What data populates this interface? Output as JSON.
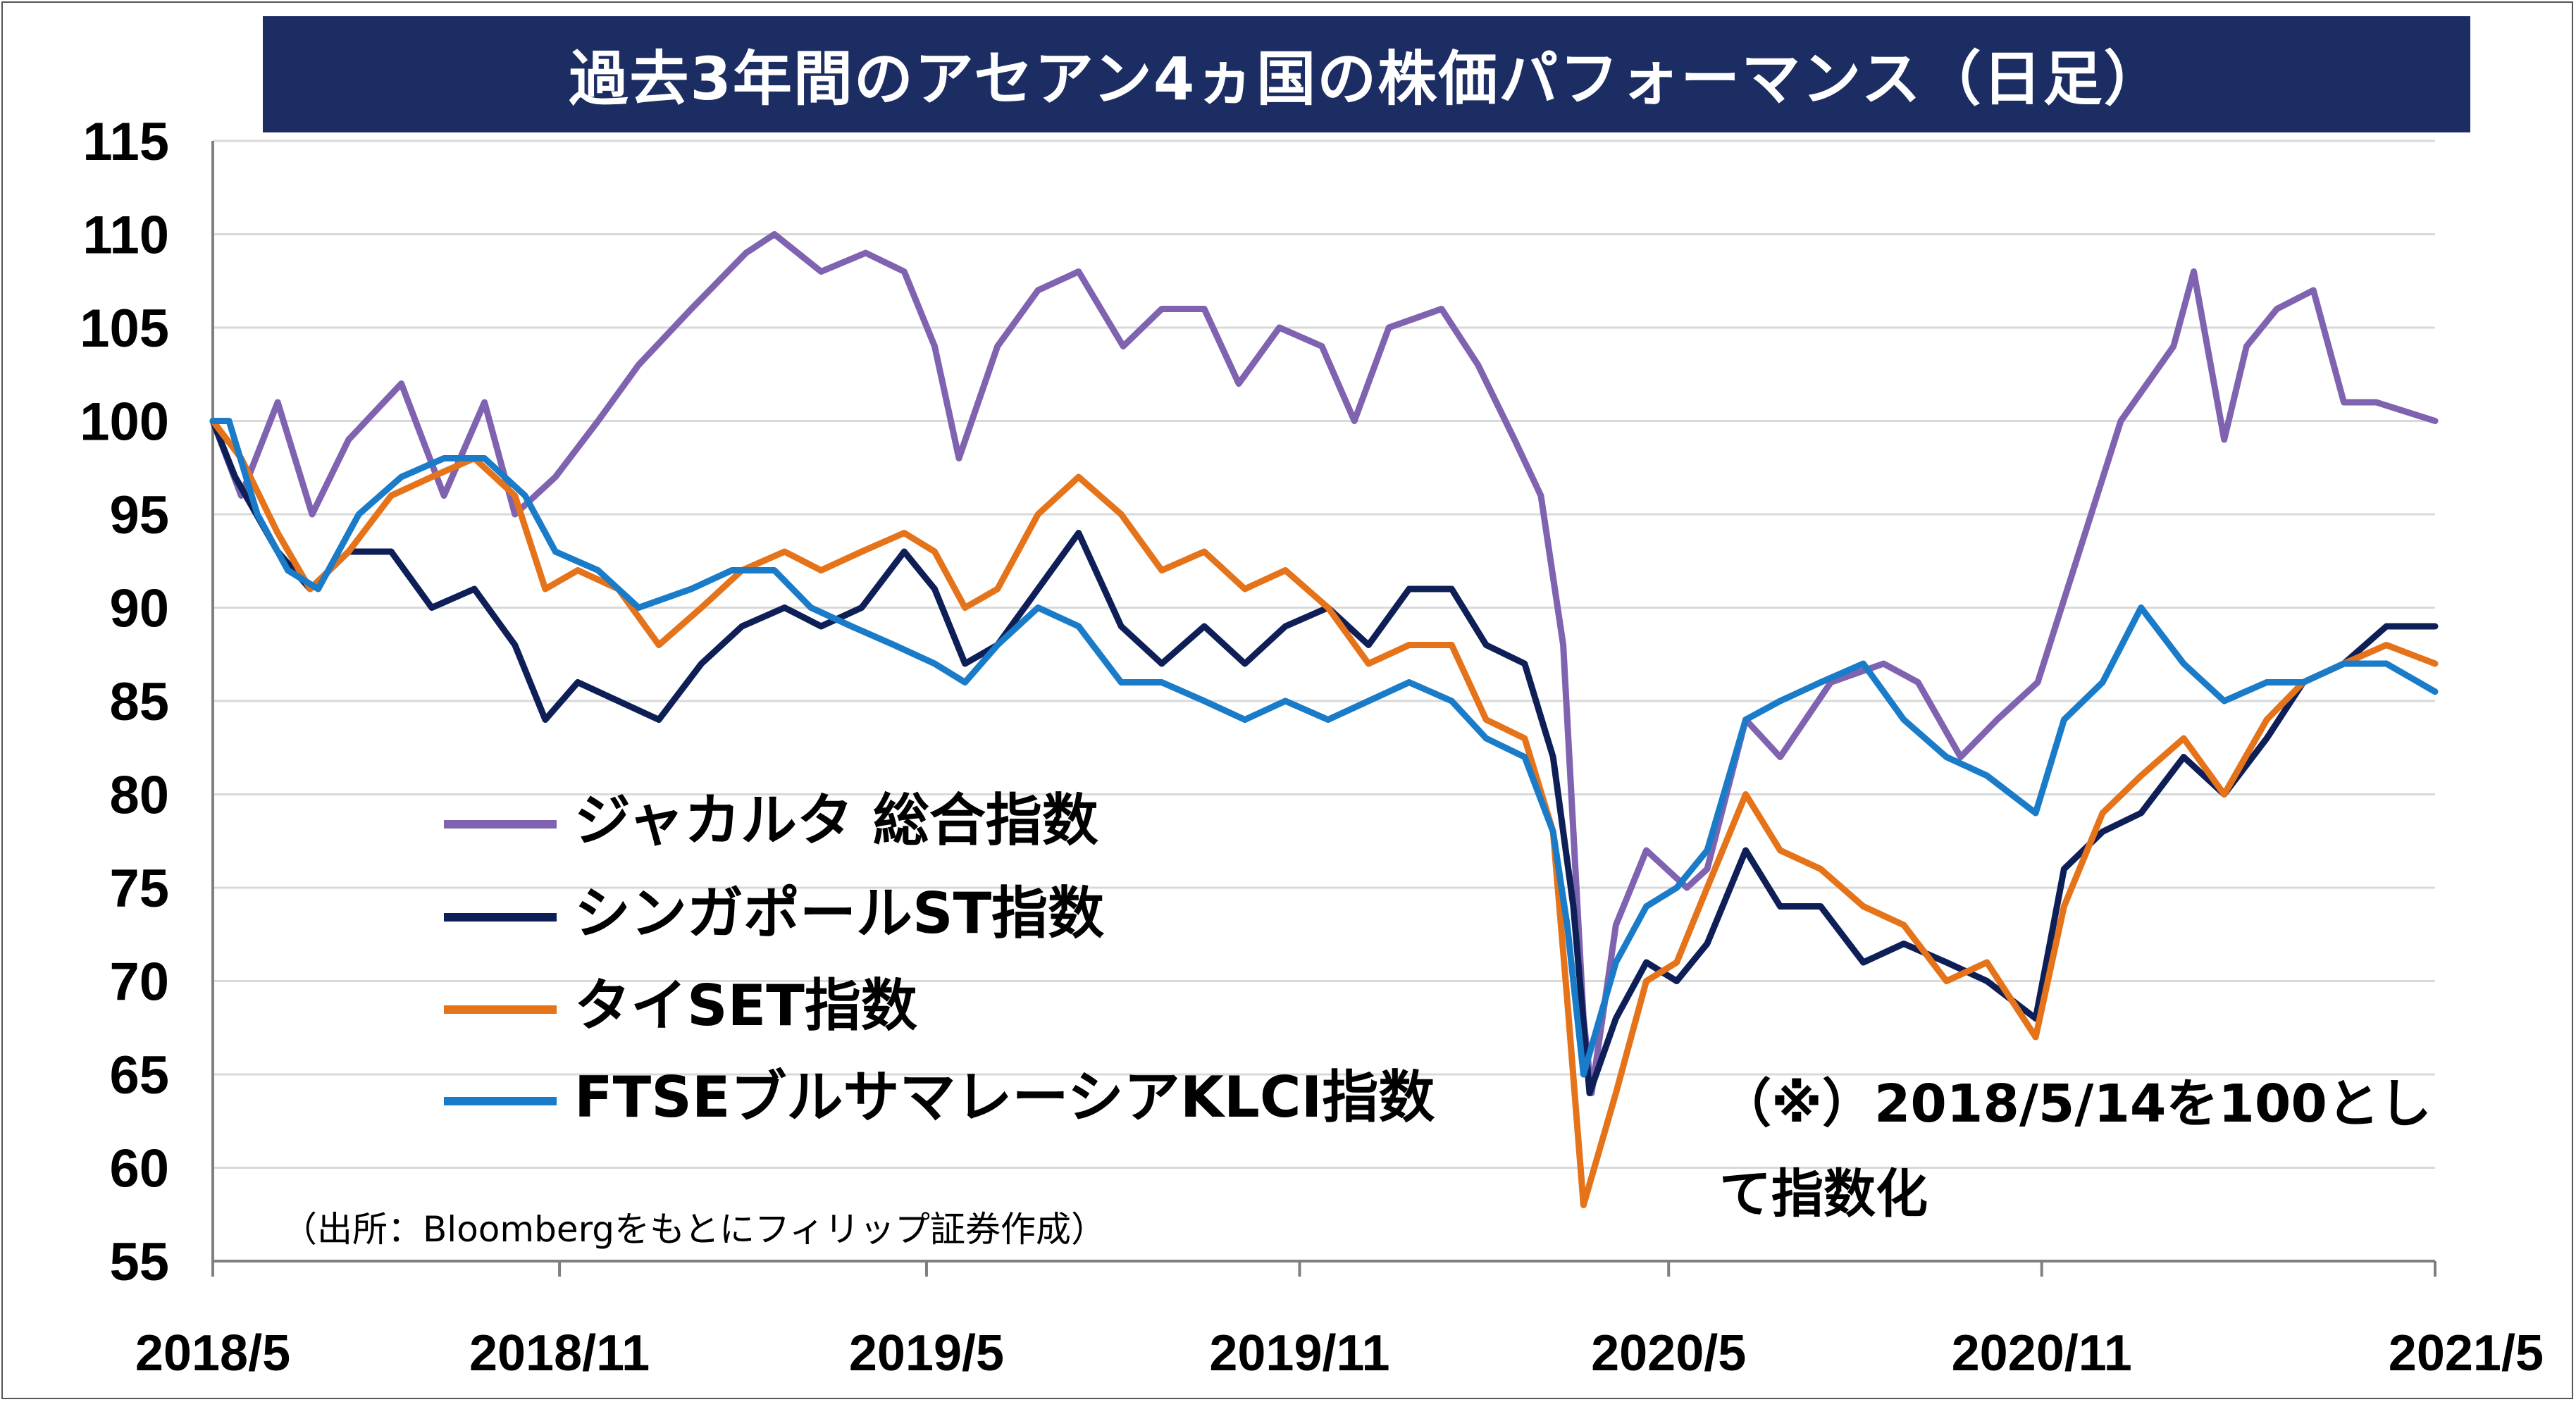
{
  "chart_data": {
    "type": "line",
    "title": "過去3年間のアセアン4ヵ国の株価パフォーマンス（日足）",
    "xlabel": "",
    "ylabel": "",
    "ylim": [
      55,
      115
    ],
    "y_ticks": [
      "115",
      "110",
      "105",
      "100",
      "95",
      "90",
      "85",
      "80",
      "75",
      "70",
      "65",
      "60",
      "55"
    ],
    "x_range": [
      "2018-05-14",
      "2021-05-14"
    ],
    "x_ticks": [
      {
        "label": "2018/5",
        "date": "2018-05-14"
      },
      {
        "label": "2018/11",
        "date": "2018-11-01"
      },
      {
        "label": "2019/5",
        "date": "2019-05-01"
      },
      {
        "label": "2019/11",
        "date": "2019-11-01"
      },
      {
        "label": "2020/5",
        "date": "2020-05-01"
      },
      {
        "label": "2020/11",
        "date": "2020-11-01"
      },
      {
        "label": "2021/5",
        "date": "2021-05-14"
      }
    ],
    "grid": "horizontal",
    "legend_placement": "center-left",
    "note": "（※）2018/5/14を100として指数化",
    "source": "（出所：Bloombergをもとにフィリップ証券作成）",
    "series": [
      {
        "name": "ジャカルタ 総合指数",
        "color": "#7f63b0",
        "points": [
          [
            "2018-05-14",
            100
          ],
          [
            "2018-05-28",
            96
          ],
          [
            "2018-06-15",
            101
          ],
          [
            "2018-07-02",
            95
          ],
          [
            "2018-07-20",
            99
          ],
          [
            "2018-08-15",
            102
          ],
          [
            "2018-09-05",
            96
          ],
          [
            "2018-09-25",
            101
          ],
          [
            "2018-10-10",
            95
          ],
          [
            "2018-10-30",
            97
          ],
          [
            "2018-11-20",
            100
          ],
          [
            "2018-12-10",
            103
          ],
          [
            "2019-01-05",
            106
          ],
          [
            "2019-02-01",
            109
          ],
          [
            "2019-02-15",
            110
          ],
          [
            "2019-03-10",
            108
          ],
          [
            "2019-04-01",
            109
          ],
          [
            "2019-04-20",
            108
          ],
          [
            "2019-05-05",
            104
          ],
          [
            "2019-05-17",
            98
          ],
          [
            "2019-06-05",
            104
          ],
          [
            "2019-06-25",
            107
          ],
          [
            "2019-07-15",
            108
          ],
          [
            "2019-08-06",
            104
          ],
          [
            "2019-08-25",
            106
          ],
          [
            "2019-09-15",
            106
          ],
          [
            "2019-10-02",
            102
          ],
          [
            "2019-10-22",
            105
          ],
          [
            "2019-11-12",
            104
          ],
          [
            "2019-11-28",
            100
          ],
          [
            "2019-12-15",
            105
          ],
          [
            "2020-01-10",
            106
          ],
          [
            "2020-01-28",
            103
          ],
          [
            "2020-02-15",
            99
          ],
          [
            "2020-02-28",
            96
          ],
          [
            "2020-03-10",
            88
          ],
          [
            "2020-03-20",
            68
          ],
          [
            "2020-03-24",
            64
          ],
          [
            "2020-04-05",
            73
          ],
          [
            "2020-04-20",
            77
          ],
          [
            "2020-05-10",
            75
          ],
          [
            "2020-05-20",
            76
          ],
          [
            "2020-06-08",
            84
          ],
          [
            "2020-06-25",
            82
          ],
          [
            "2020-07-20",
            86
          ],
          [
            "2020-08-15",
            87
          ],
          [
            "2020-09-01",
            86
          ],
          [
            "2020-09-22",
            82
          ],
          [
            "2020-10-10",
            84
          ],
          [
            "2020-10-30",
            86
          ],
          [
            "2020-11-20], [",
            94
          ],
          [
            "2020-12-10",
            100
          ],
          [
            "2021-01-05",
            104
          ],
          [
            "2021-01-15",
            108
          ],
          [
            "2021-01-30",
            99
          ],
          [
            "2021-02-10",
            104
          ],
          [
            "2021-02-25",
            106
          ],
          [
            "2021-03-15",
            107
          ],
          [
            "2021-03-30",
            101
          ],
          [
            "2021-04-15",
            101
          ],
          [
            "2021-05-14",
            100
          ]
        ]
      },
      {
        "name": "シンガポールST指数",
        "color": "#0e1f57",
        "points": [
          [
            "2018-05-14",
            100
          ],
          [
            "2018-05-25",
            97
          ],
          [
            "2018-06-15",
            93
          ],
          [
            "2018-07-01",
            91
          ],
          [
            "2018-07-20",
            93
          ],
          [
            "2018-08-10",
            93
          ],
          [
            "2018-08-30",
            90
          ],
          [
            "2018-09-20",
            91
          ],
          [
            "2018-10-10",
            88
          ],
          [
            "2018-10-25",
            84
          ],
          [
            "2018-11-10",
            86
          ],
          [
            "2018-11-30",
            85
          ],
          [
            "2018-12-20",
            84
          ],
          [
            "2019-01-10",
            87
          ],
          [
            "2019-01-30",
            89
          ],
          [
            "2019-02-20",
            90
          ],
          [
            "2019-03-10",
            89
          ],
          [
            "2019-03-30",
            90
          ],
          [
            "2019-04-20",
            93
          ],
          [
            "2019-05-05",
            91
          ],
          [
            "2019-05-20",
            87
          ],
          [
            "2019-06-05",
            88
          ],
          [
            "2019-06-25",
            91
          ],
          [
            "2019-07-15",
            94
          ],
          [
            "2019-08-05",
            89
          ],
          [
            "2019-08-25",
            87
          ],
          [
            "2019-09-15",
            89
          ],
          [
            "2019-10-05",
            87
          ],
          [
            "2019-10-25",
            89
          ],
          [
            "2019-11-15",
            90
          ],
          [
            "2019-12-05",
            88
          ],
          [
            "2019-12-25",
            91
          ],
          [
            "2020-01-15",
            91
          ],
          [
            "2020-02-01",
            88
          ],
          [
            "2020-02-20",
            87
          ],
          [
            "2020-03-05",
            82
          ],
          [
            "2020-03-15",
            74
          ],
          [
            "2020-03-23",
            64
          ],
          [
            "2020-04-05",
            68
          ],
          [
            "2020-04-20",
            71
          ],
          [
            "2020-05-05",
            70
          ],
          [
            "2020-05-20",
            72
          ],
          [
            "2020-06-08",
            77
          ],
          [
            "2020-06-25",
            74
          ],
          [
            "2020-07-15",
            74
          ],
          [
            "2020-08-05",
            71
          ],
          [
            "2020-08-25",
            72
          ],
          [
            "2020-09-15",
            71
          ],
          [
            "2020-10-05",
            70
          ],
          [
            "2020-10-29",
            68
          ],
          [
            "2020-11-12",
            76
          ],
          [
            "2020-12-01",
            78
          ],
          [
            "2020-12-20",
            79
          ],
          [
            "2021-01-10",
            82
          ],
          [
            "2021-01-30",
            80
          ],
          [
            "2021-02-20",
            83
          ],
          [
            "2021-03-10",
            86
          ],
          [
            "2021-03-30",
            87
          ],
          [
            "2021-04-20",
            89
          ],
          [
            "2021-05-14",
            89
          ]
        ]
      },
      {
        "name": "タイSET指数",
        "color": "#e5731a",
        "points": [
          [
            "2018-05-14",
            100
          ],
          [
            "2018-05-28",
            98
          ],
          [
            "2018-06-15",
            94
          ],
          [
            "2018-07-01",
            91
          ],
          [
            "2018-07-20",
            93
          ],
          [
            "2018-08-10",
            96
          ],
          [
            "2018-08-30",
            97
          ],
          [
            "2018-09-20",
            98
          ],
          [
            "2018-10-10",
            96
          ],
          [
            "2018-10-25",
            91
          ],
          [
            "2018-11-10",
            92
          ],
          [
            "2018-11-30",
            91
          ],
          [
            "2018-12-20",
            88
          ],
          [
            "2019-01-10",
            90
          ],
          [
            "2019-01-30",
            92
          ],
          [
            "2019-02-20",
            93
          ],
          [
            "2019-03-10",
            92
          ],
          [
            "2019-03-30",
            93
          ],
          [
            "2019-04-20",
            94
          ],
          [
            "2019-05-05",
            93
          ],
          [
            "2019-05-20",
            90
          ],
          [
            "2019-06-05",
            91
          ],
          [
            "2019-06-25",
            95
          ],
          [
            "2019-07-15",
            97
          ],
          [
            "2019-08-05",
            95
          ],
          [
            "2019-08-25",
            92
          ],
          [
            "2019-09-15",
            93
          ],
          [
            "2019-10-05",
            91
          ],
          [
            "2019-10-25",
            92
          ],
          [
            "2019-11-15",
            90
          ],
          [
            "2019-12-05",
            87
          ],
          [
            "2019-12-25",
            88
          ],
          [
            "2020-01-15",
            88
          ],
          [
            "2020-02-01",
            84
          ],
          [
            "2020-02-20",
            83
          ],
          [
            "2020-03-05",
            78
          ],
          [
            "2020-03-12",
            69
          ],
          [
            "2020-03-20",
            58
          ],
          [
            "2020-04-05",
            64
          ],
          [
            "2020-04-20",
            70
          ],
          [
            "2020-05-05",
            71
          ],
          [
            "2020-05-20",
            75
          ],
          [
            "2020-06-08",
            80
          ],
          [
            "2020-06-25",
            77
          ],
          [
            "2020-07-15",
            76
          ],
          [
            "2020-08-05",
            74
          ],
          [
            "2020-08-25",
            73
          ],
          [
            "2020-09-15",
            70
          ],
          [
            "2020-10-05",
            71
          ],
          [
            "2020-10-29",
            67
          ],
          [
            "2020-11-12",
            74
          ],
          [
            "2020-12-01",
            79
          ],
          [
            "2020-12-20",
            81
          ],
          [
            "2021-01-10",
            83
          ],
          [
            "2021-01-30",
            80
          ],
          [
            "2021-02-20",
            84
          ],
          [
            "2021-03-10",
            86
          ],
          [
            "2021-03-30",
            87
          ],
          [
            "2021-04-20",
            88
          ],
          [
            "2021-05-14",
            87
          ]
        ]
      },
      {
        "name": "FTSEブルサマレーシアKLCI指数",
        "color": "#1a7cc9",
        "points": [
          [
            "2018-05-14",
            100
          ],
          [
            "2018-05-22",
            100
          ],
          [
            "2018-06-05",
            95
          ],
          [
            "2018-06-20",
            92
          ],
          [
            "2018-07-05",
            91
          ],
          [
            "2018-07-25",
            95
          ],
          [
            "2018-08-15",
            97
          ],
          [
            "2018-09-05",
            98
          ],
          [
            "2018-09-25",
            98
          ],
          [
            "2018-10-15",
            96
          ],
          [
            "2018-10-30",
            93
          ],
          [
            "2018-11-20",
            92
          ],
          [
            "2018-12-10",
            90
          ],
          [
            "2019-01-05",
            91
          ],
          [
            "2019-01-25",
            92
          ],
          [
            "2019-02-15",
            92
          ],
          [
            "2019-03-05",
            90
          ],
          [
            "2019-03-25",
            89
          ],
          [
            "2019-04-15",
            88
          ],
          [
            "2019-05-05",
            87
          ],
          [
            "2019-05-20",
            86
          ],
          [
            "2019-06-05",
            88
          ],
          [
            "2019-06-25",
            90
          ],
          [
            "2019-07-15",
            89
          ],
          [
            "2019-08-05",
            86
          ],
          [
            "2019-08-25",
            86
          ],
          [
            "2019-09-15",
            85
          ],
          [
            "2019-10-05",
            84
          ],
          [
            "2019-10-25",
            85
          ],
          [
            "2019-11-15",
            84
          ],
          [
            "2019-12-05",
            85
          ],
          [
            "2019-12-25",
            86
          ],
          [
            "2020-01-15",
            85
          ],
          [
            "2020-02-01",
            83
          ],
          [
            "2020-02-20",
            82
          ],
          [
            "2020-03-05",
            78
          ],
          [
            "2020-03-12",
            73
          ],
          [
            "2020-03-20",
            65
          ],
          [
            "2020-04-05",
            71
          ],
          [
            "2020-04-20",
            74
          ],
          [
            "2020-05-05",
            75
          ],
          [
            "2020-05-20",
            77
          ],
          [
            "2020-06-08",
            84
          ],
          [
            "2020-06-25",
            85
          ],
          [
            "2020-07-15",
            86
          ],
          [
            "2020-08-05",
            87
          ],
          [
            "2020-08-25",
            84
          ],
          [
            "2020-09-15",
            82
          ],
          [
            "2020-10-05",
            81
          ],
          [
            "2020-10-29",
            79
          ],
          [
            "2020-11-12",
            84
          ],
          [
            "2020-12-01",
            86
          ],
          [
            "2020-12-20",
            90
          ],
          [
            "2021-01-10",
            87
          ],
          [
            "2021-01-30",
            85
          ],
          [
            "2021-02-20",
            86
          ],
          [
            "2021-03-10",
            86
          ],
          [
            "2021-03-30",
            87
          ],
          [
            "2021-04-20",
            87
          ],
          [
            "2021-05-14",
            85.5
          ]
        ]
      }
    ]
  }
}
